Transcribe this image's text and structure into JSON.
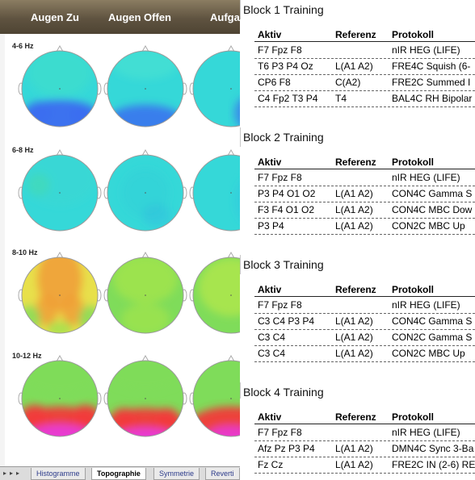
{
  "topography": {
    "columns": [
      "Augen Zu",
      "Augen Offen",
      "Aufga"
    ],
    "bands": [
      {
        "label": "4-6 Hz"
      },
      {
        "label": "6-8 Hz"
      },
      {
        "label": "8-10 Hz"
      },
      {
        "label": "10-12 Hz"
      }
    ]
  },
  "tabs": {
    "items": [
      "Histogramme",
      "Topographie",
      "Symmetrie",
      "Reverti"
    ],
    "active": "Topographie"
  },
  "blocks": [
    {
      "title": "Block 1 Training",
      "headers": {
        "aktiv": "Aktiv",
        "referenz": "Referenz",
        "protokoll": "Protokoll"
      },
      "rows": [
        {
          "aktiv": "F7 Fpz F8",
          "referenz": "",
          "protokoll": "nIR HEG (LIFE)"
        },
        {
          "aktiv": "T6 P3 P4 Oz",
          "referenz": "L(A1 A2)",
          "protokoll": "FRE4C Squish (6-"
        },
        {
          "aktiv": "CP6 F8",
          "referenz": "C(A2)",
          "protokoll": "FRE2C Summed I"
        },
        {
          "aktiv": "C4 Fp2 T3 P4",
          "referenz": "T4",
          "protokoll": "BAL4C RH Bipolar"
        }
      ]
    },
    {
      "title": "Block 2 Training",
      "headers": {
        "aktiv": "Aktiv",
        "referenz": "Referenz",
        "protokoll": "Protokoll"
      },
      "rows": [
        {
          "aktiv": "F7 Fpz F8",
          "referenz": "",
          "protokoll": "nIR HEG (LIFE)"
        },
        {
          "aktiv": "P3 P4 O1 O2",
          "referenz": "L(A1 A2)",
          "protokoll": "CON4C Gamma S"
        },
        {
          "aktiv": "F3 F4 O1 O2",
          "referenz": "L(A1 A2)",
          "protokoll": "CON4C MBC Dow"
        },
        {
          "aktiv": "P3 P4",
          "referenz": "L(A1 A2)",
          "protokoll": "CON2C MBC Up"
        }
      ]
    },
    {
      "title": "Block 3 Training",
      "headers": {
        "aktiv": "Aktiv",
        "referenz": "Referenz",
        "protokoll": "Protokoll"
      },
      "rows": [
        {
          "aktiv": "F7 Fpz F8",
          "referenz": "",
          "protokoll": "nIR HEG (LIFE)"
        },
        {
          "aktiv": "C3 C4 P3 P4",
          "referenz": "L(A1 A2)",
          "protokoll": "CON4C Gamma S"
        },
        {
          "aktiv": "C3 C4",
          "referenz": "L(A1 A2)",
          "protokoll": "CON2C Gamma S"
        },
        {
          "aktiv": "C3 C4",
          "referenz": "L(A1 A2)",
          "protokoll": "CON2C MBC Up"
        }
      ]
    },
    {
      "title": "Block 4 Training",
      "headers": {
        "aktiv": "Aktiv",
        "referenz": "Referenz",
        "protokoll": "Protokoll"
      },
      "rows": [
        {
          "aktiv": "F7 Fpz F8",
          "referenz": "",
          "protokoll": "nIR HEG (LIFE)"
        },
        {
          "aktiv": "Afz Pz P3 P4",
          "referenz": "L(A1 A2)",
          "protokoll": "DMN4C Sync 3-Ba"
        },
        {
          "aktiv": "Fz Cz",
          "referenz": "L(A1 A2)",
          "protokoll": "FRE2C IN (2-6) RE"
        }
      ]
    }
  ],
  "colors": {
    "toolbar": "#5f5340",
    "cyan": "#35d8d8",
    "blue": "#3b6ef0",
    "green": "#7fdc5a",
    "yellow": "#e8e04a",
    "orange": "#f0a03a",
    "red": "#f23a3a",
    "magenta": "#e83ad8"
  }
}
